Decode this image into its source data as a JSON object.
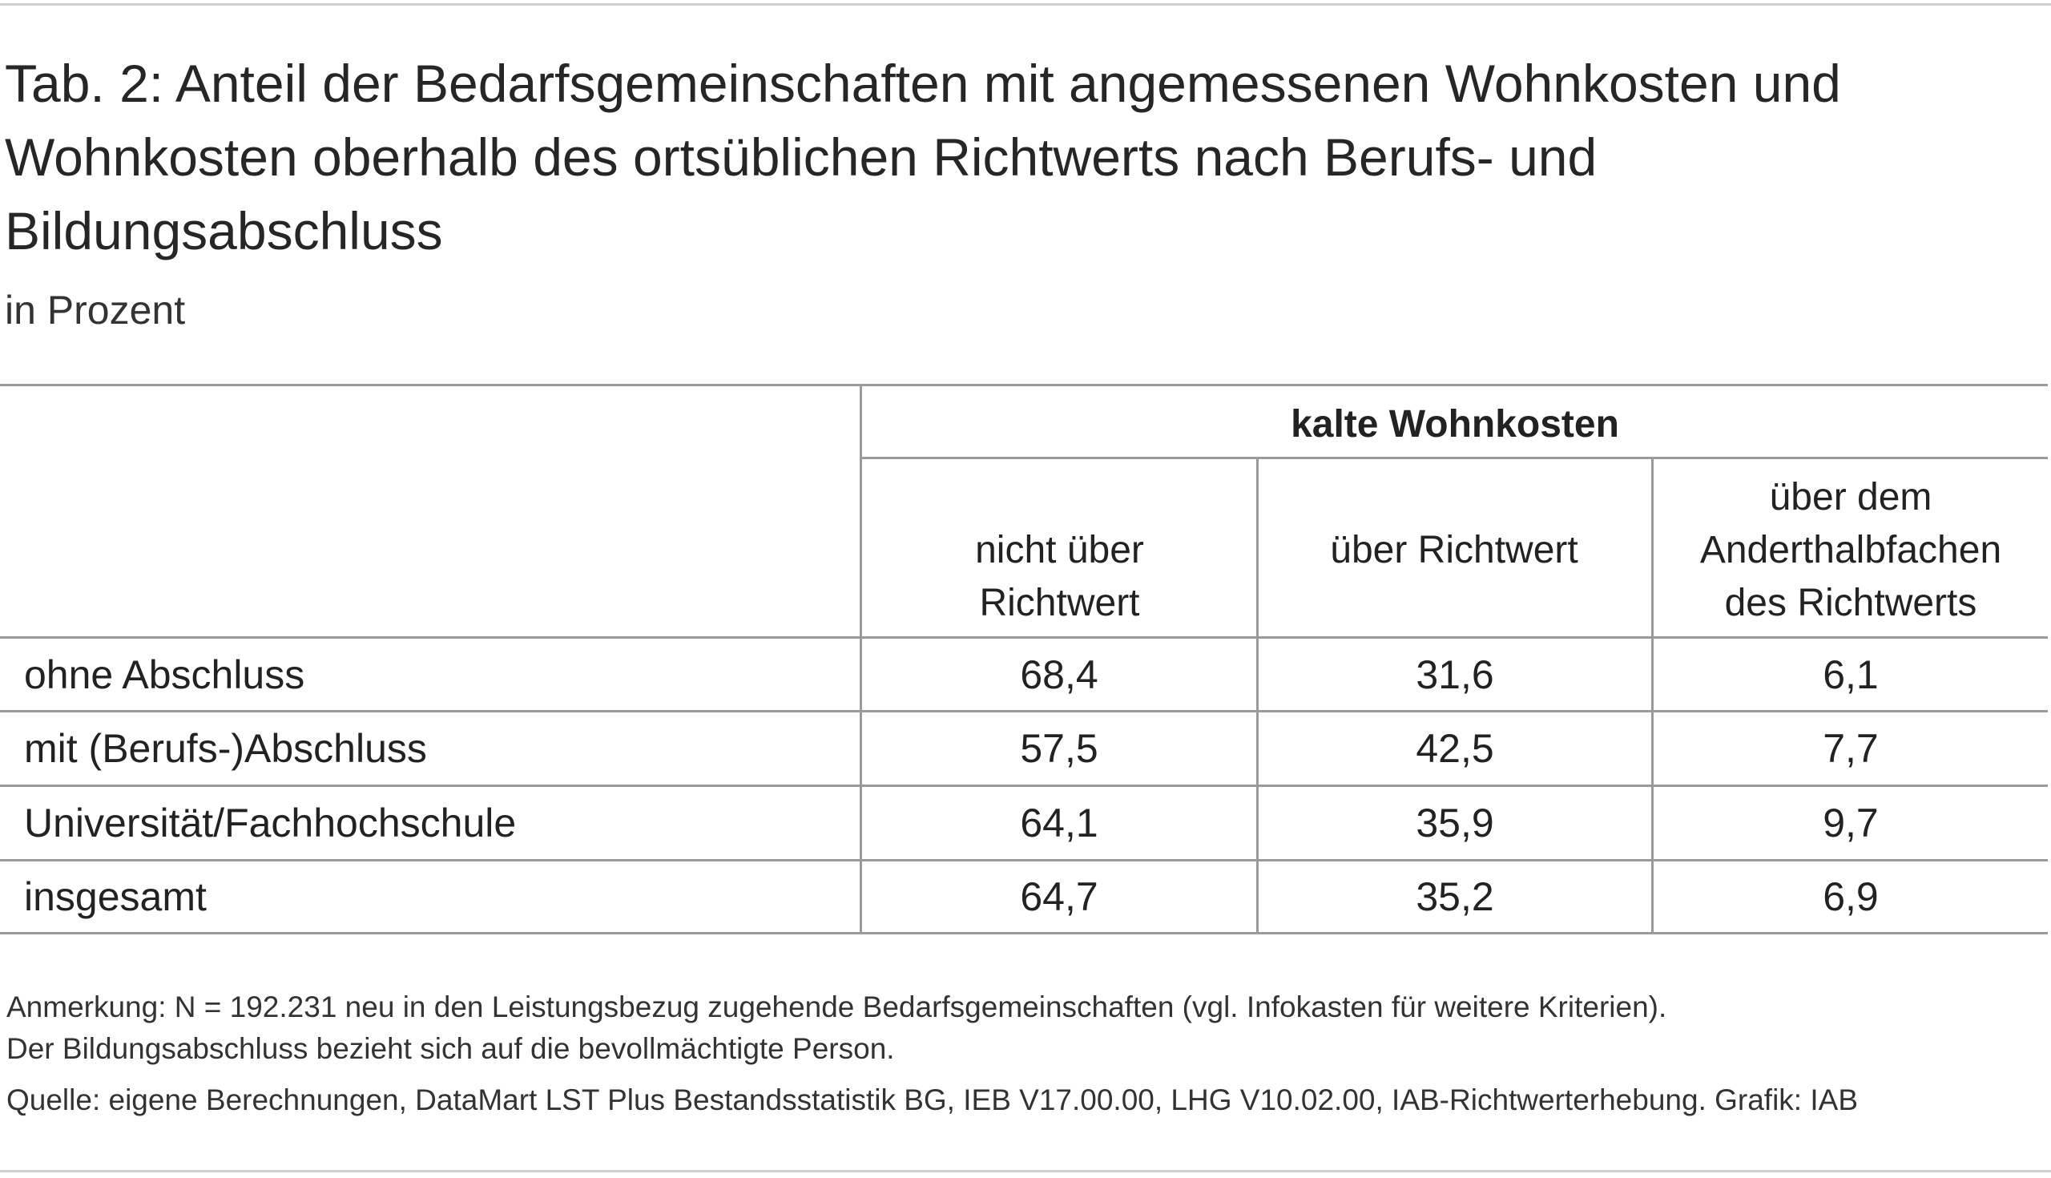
{
  "title": "Tab. 2: Anteil der Bedarfsgemeinschaften mit angemessenen Wohnkosten und Wohnkosten oberhalb des ortsüblichen Richtwerts nach Berufs- und Bildungsabschluss",
  "subtitle": "in Prozent",
  "table": {
    "group_header": "kalte Wohnkosten",
    "columns": [
      "nicht über Richtwert",
      "über Richtwert",
      "über dem Anderthalbfachen des Richtwerts"
    ],
    "rows": [
      {
        "label": "ohne Abschluss",
        "values": [
          "68,4",
          "31,6",
          "6,1"
        ]
      },
      {
        "label": "mit (Berufs-)Abschluss",
        "values": [
          "57,5",
          "42,5",
          "7,7"
        ]
      },
      {
        "label": "Universität/Fachhochschule",
        "values": [
          "64,1",
          "35,9",
          "9,7"
        ]
      },
      {
        "label": "insgesamt",
        "values": [
          "64,7",
          "35,2",
          "6,9"
        ]
      }
    ]
  },
  "notes": {
    "line1": "Anmerkung: N = 192.231 neu in den Leistungsbezug zugehende Bedarfsgemeinschaften (vgl. Infokasten für weitere Kriterien).",
    "line2": "Der Bildungsabschluss bezieht sich auf die bevollmächtigte Person.",
    "source": "Quelle: eigene Berechnungen, DataMart LST Plus Bestandsstatistik BG, IEB V17.00.00, LHG V10.02.00, IAB-Richtwerterhebung. Grafik: IAB"
  }
}
